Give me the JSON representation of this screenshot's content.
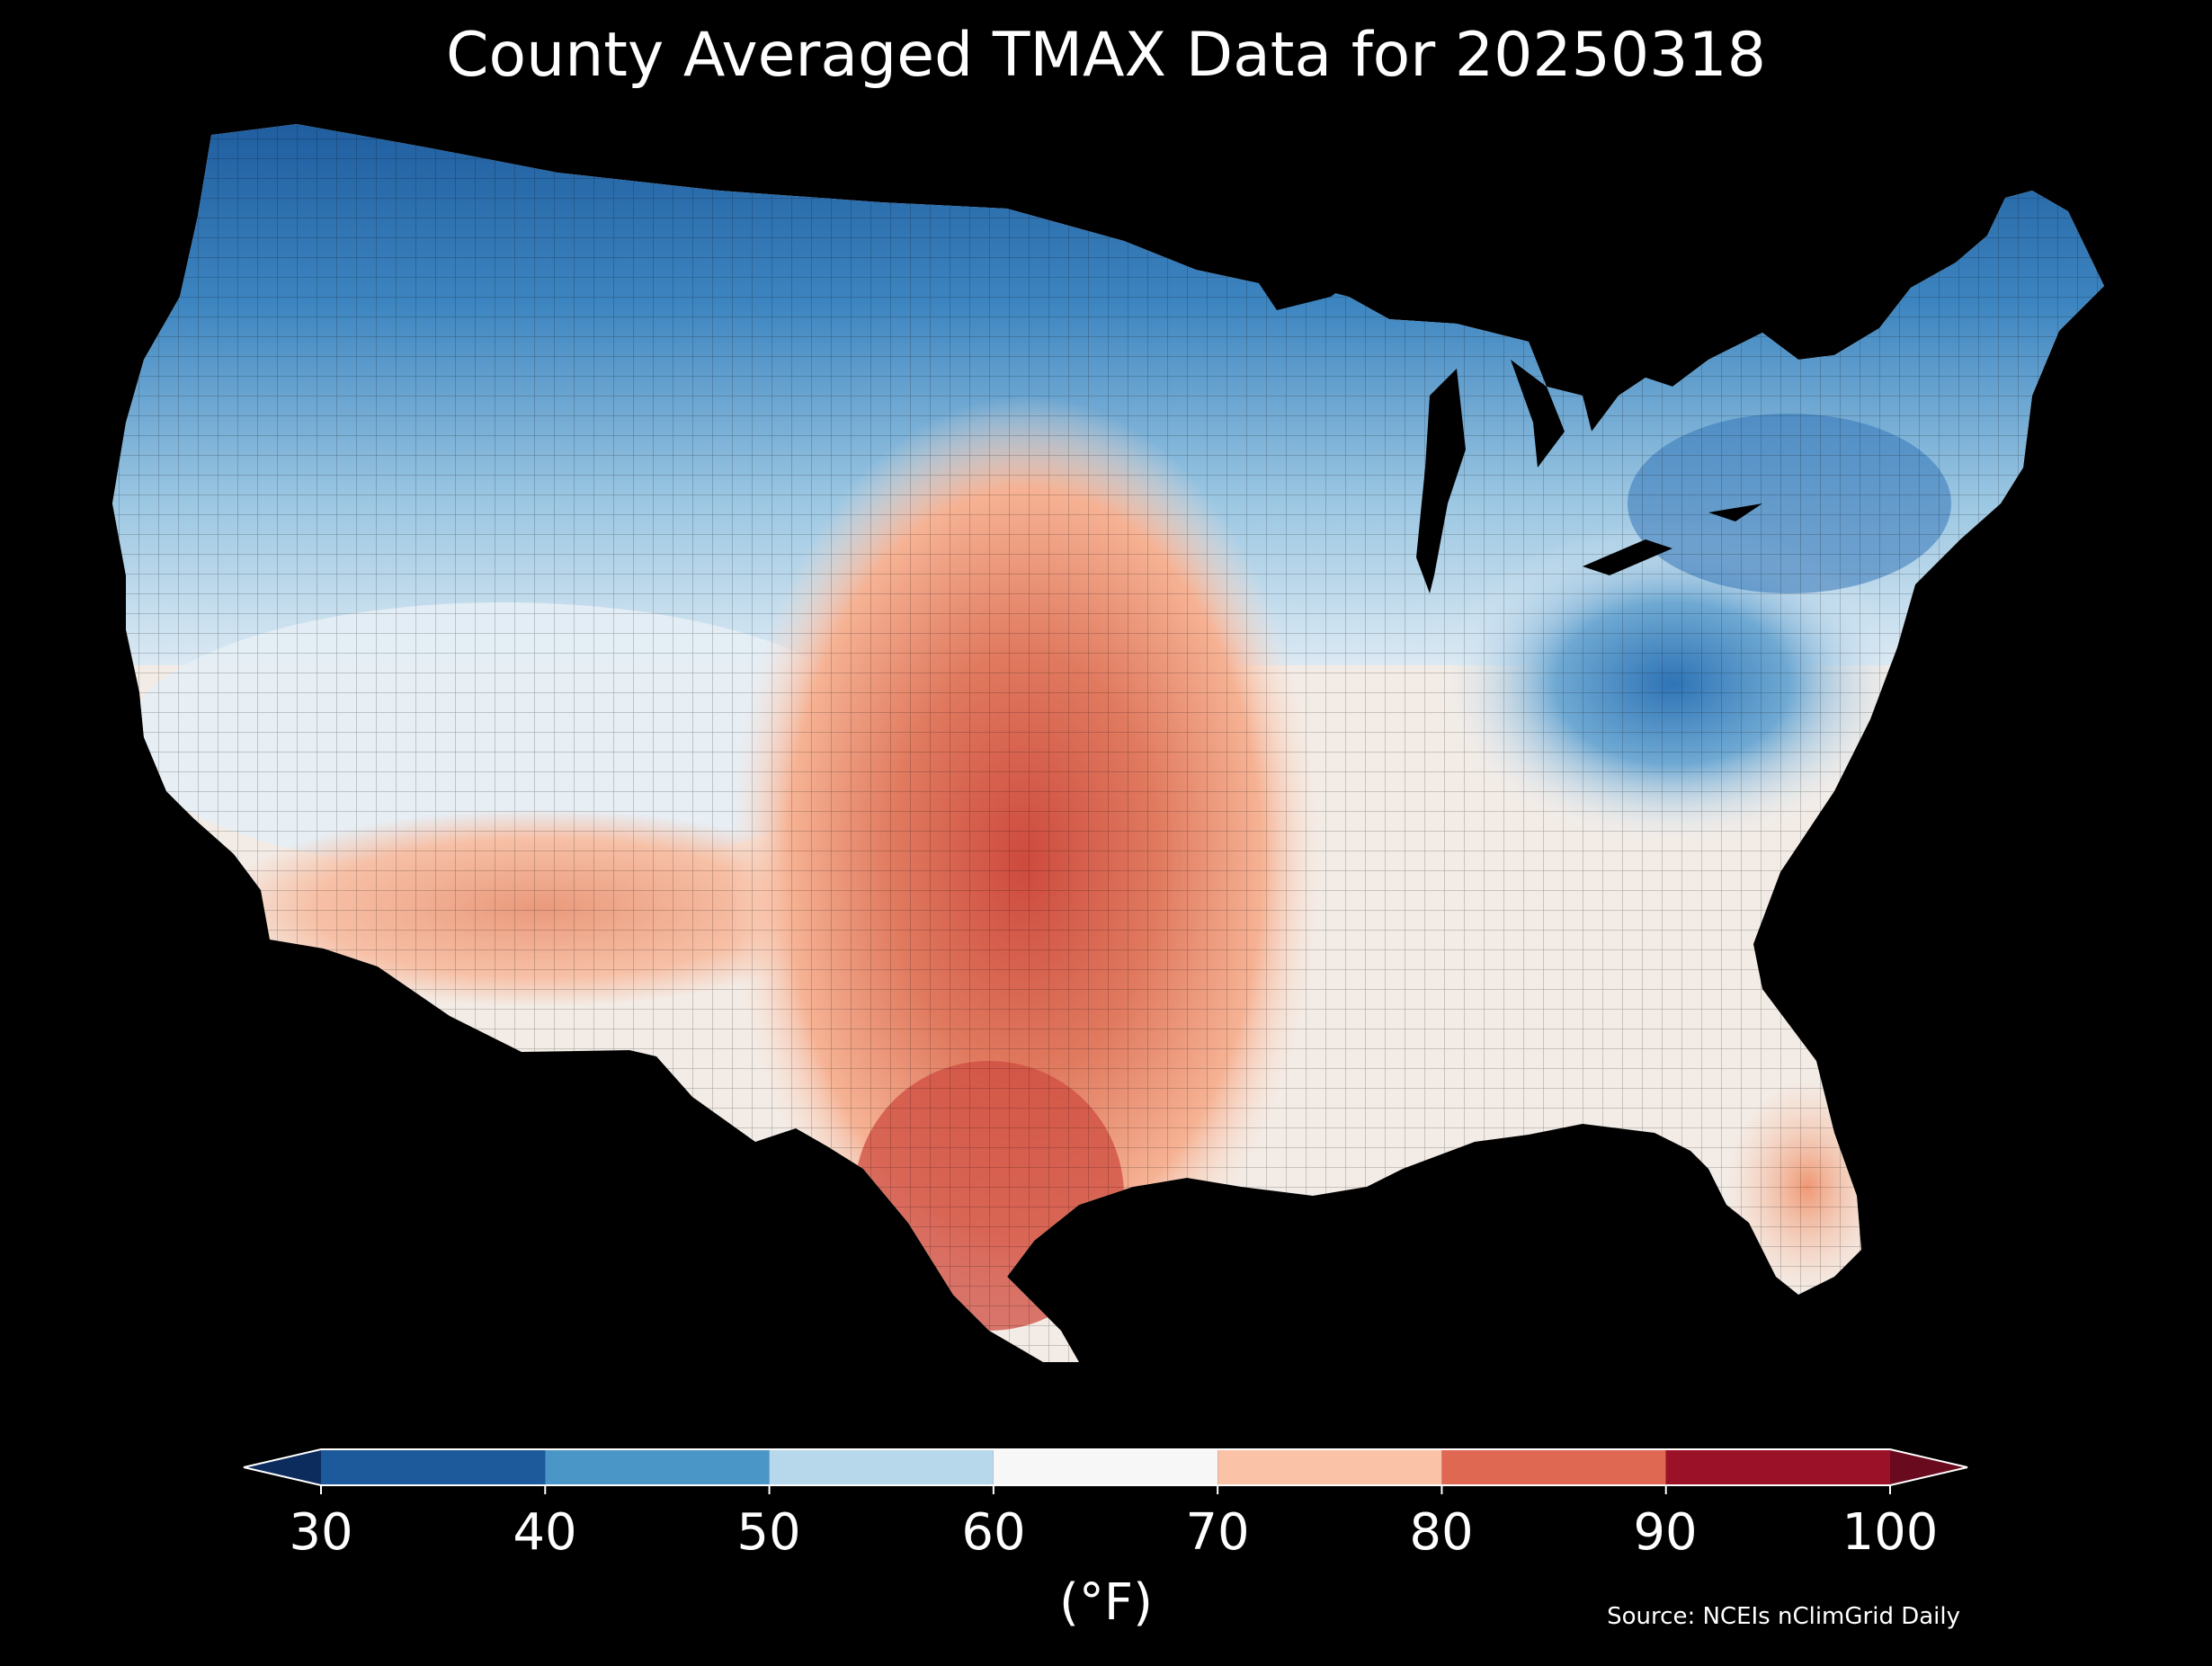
{
  "title": "County Averaged TMAX Data for 20250318",
  "colorbar": {
    "label": "(°F)",
    "ticks": [
      "30",
      "40",
      "50",
      "60",
      "70",
      "80",
      "90",
      "100"
    ],
    "bins": [
      {
        "min": 30,
        "max": 40,
        "color": "#1d5a9c"
      },
      {
        "min": 40,
        "max": 50,
        "color": "#4a96c7"
      },
      {
        "min": 50,
        "max": 60,
        "color": "#b7d7ea"
      },
      {
        "min": 60,
        "max": 70,
        "color": "#f7f7f7"
      },
      {
        "min": 70,
        "max": 80,
        "color": "#fac3a8"
      },
      {
        "min": 80,
        "max": 90,
        "color": "#de6852"
      },
      {
        "min": 90,
        "max": 100,
        "color": "#9b1128"
      }
    ],
    "under_color": "#0c2c5e",
    "over_color": "#6a0a1e"
  },
  "source": "Source: NCEIs nClimGrid Daily",
  "colors": {
    "background": "#000000",
    "cold": "#2b6cb0",
    "cool": "#74add1",
    "neutral": "#f7f7f7",
    "warm": "#f4a582",
    "hot": "#d6604d",
    "hottest": "#c43c3c"
  }
}
